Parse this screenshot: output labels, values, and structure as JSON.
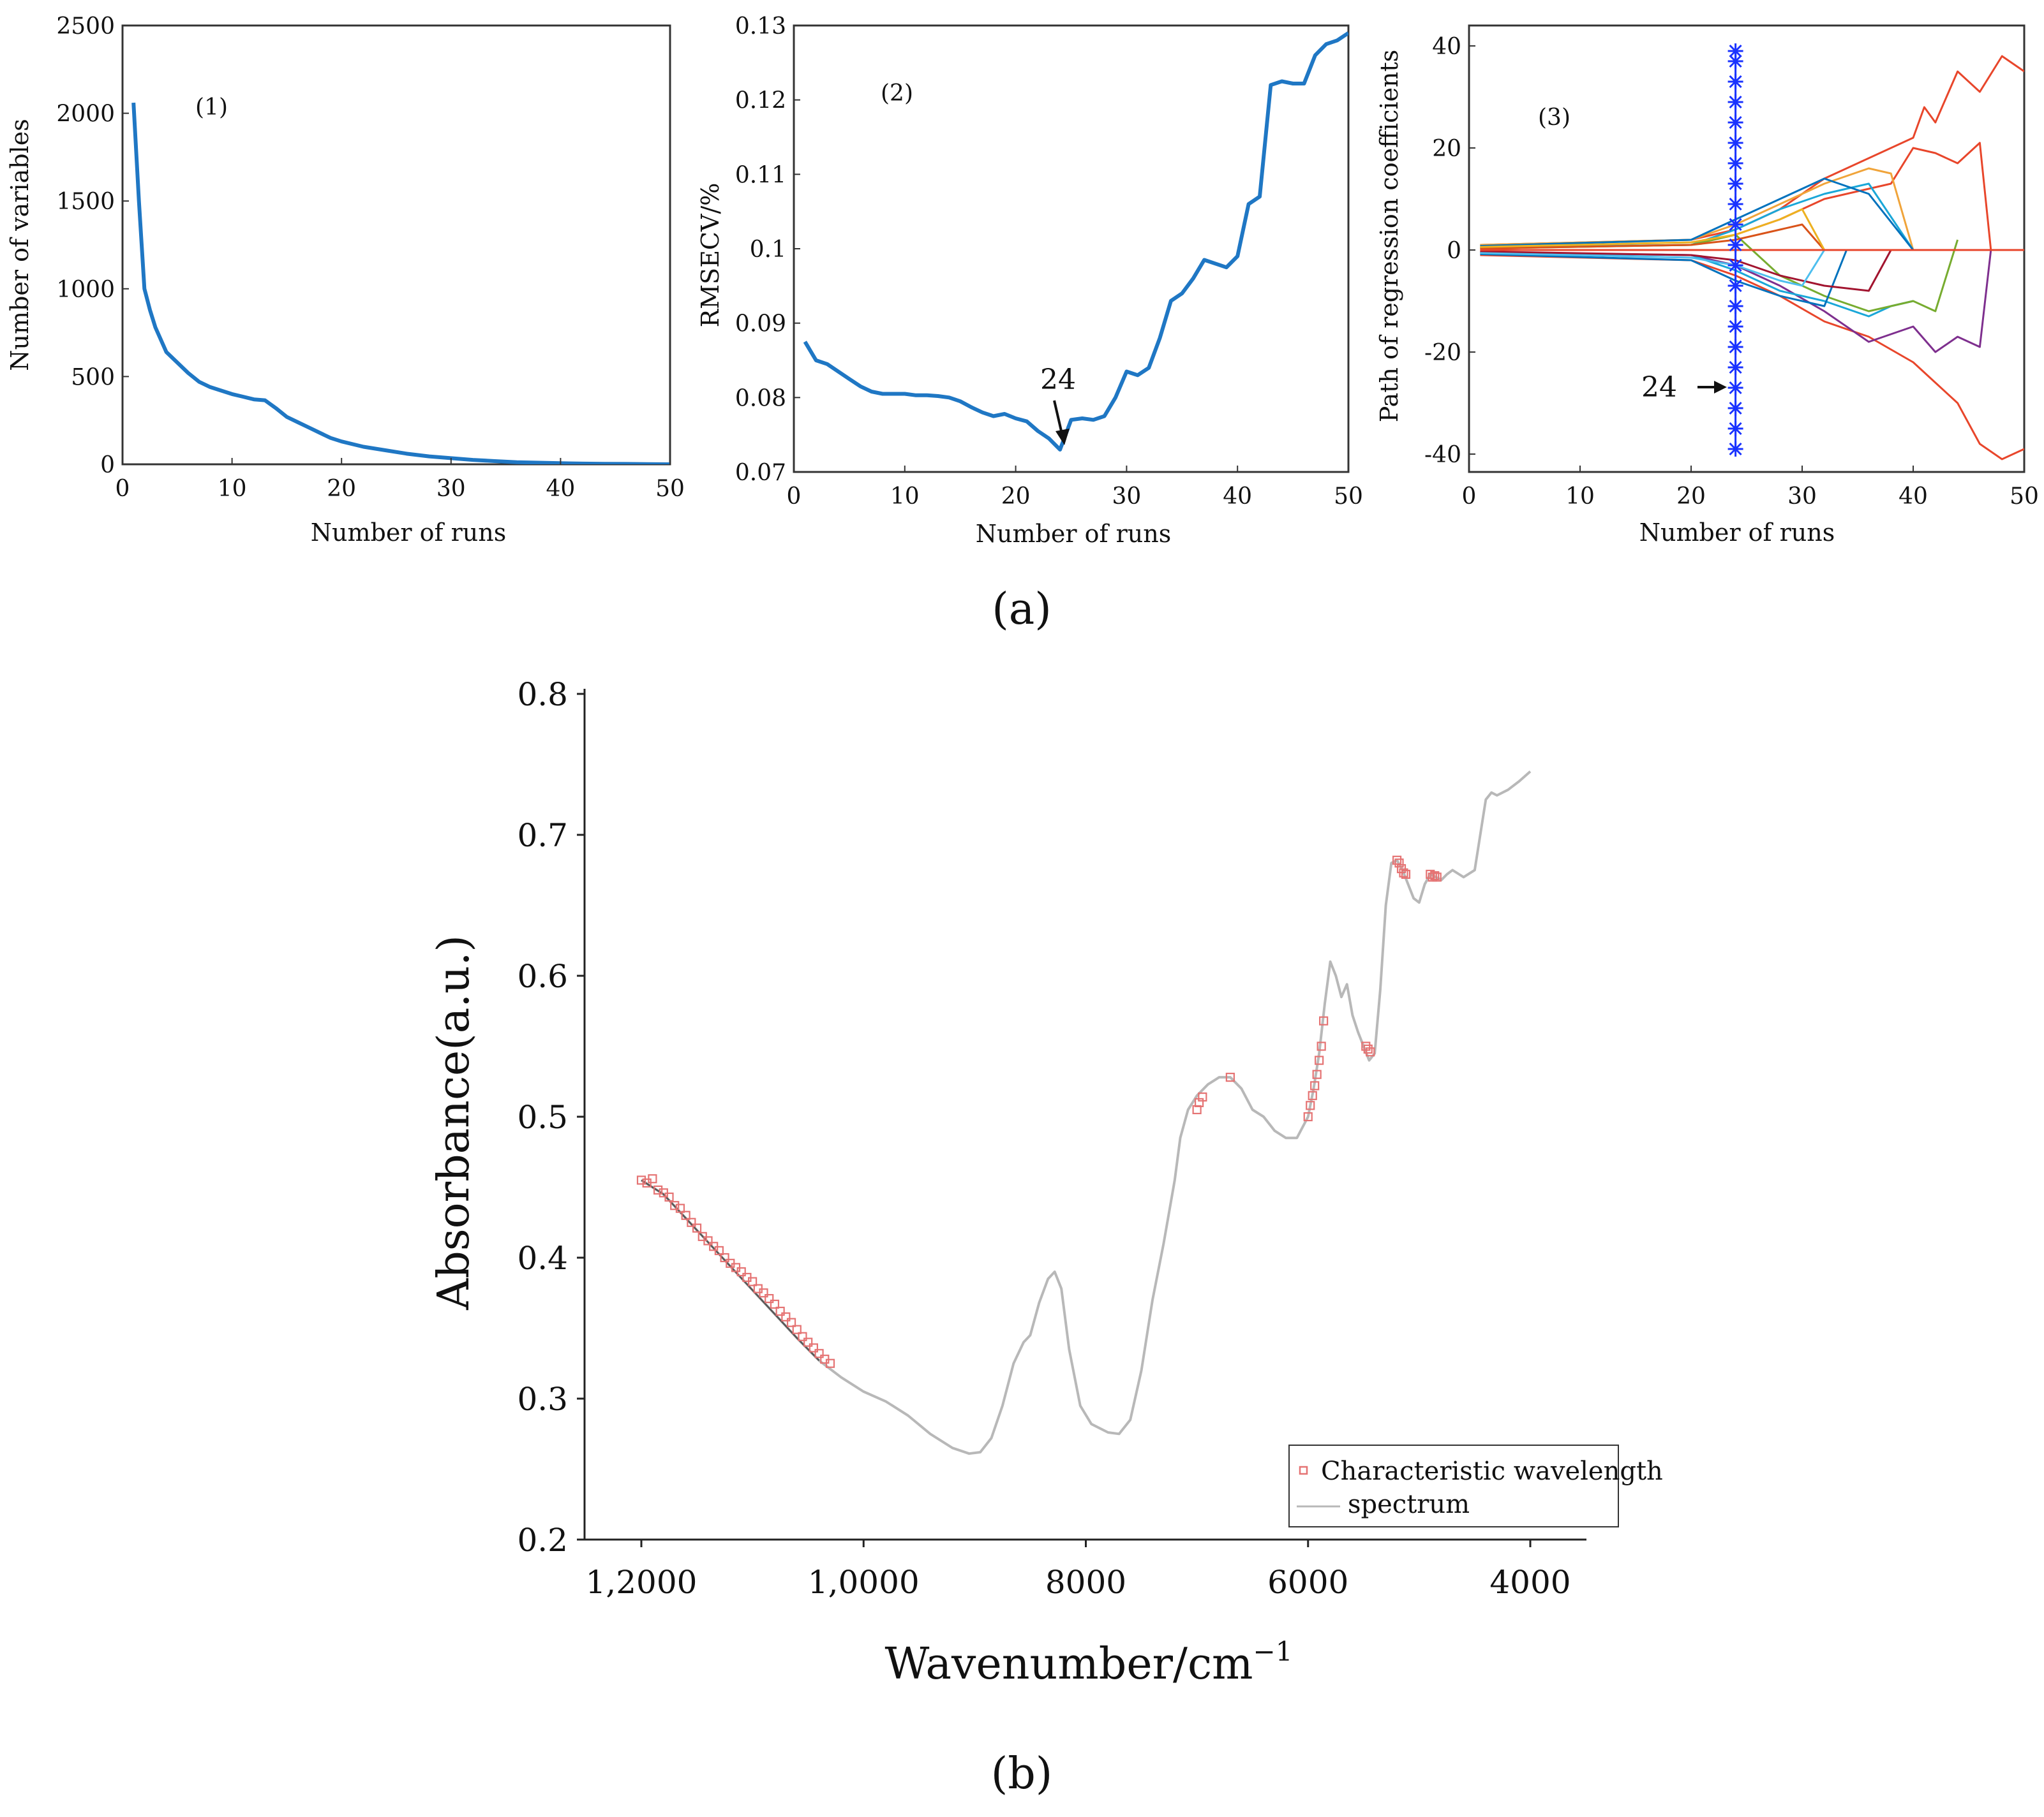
{
  "caption_a": "(a)",
  "caption_b": "(b)",
  "chart_data": [
    {
      "type": "line",
      "panel_label": "(1)",
      "xlabel": "Number of runs",
      "ylabel": "Number of variables",
      "xlim": [
        0,
        50
      ],
      "ylim": [
        0,
        2500
      ],
      "xticks": [
        "0",
        "10",
        "20",
        "30",
        "40",
        "50"
      ],
      "yticks": [
        "0",
        "500",
        "1000",
        "1500",
        "2000",
        "2500"
      ],
      "color": "#1f77c4",
      "series": [
        {
          "name": "Number of variables",
          "x": [
            1,
            1.5,
            2,
            2.5,
            3,
            4,
            5,
            6,
            7,
            8,
            9,
            10,
            11,
            12,
            13,
            14,
            15,
            16,
            17,
            18,
            19,
            20,
            22,
            24,
            26,
            28,
            30,
            32,
            34,
            36,
            38,
            40,
            42,
            44,
            46,
            48,
            50
          ],
          "y": [
            2060,
            1500,
            1000,
            880,
            780,
            640,
            580,
            520,
            470,
            440,
            420,
            400,
            385,
            370,
            365,
            320,
            270,
            240,
            210,
            180,
            150,
            130,
            100,
            80,
            60,
            45,
            35,
            25,
            18,
            12,
            9,
            6,
            4,
            3,
            2,
            1,
            0
          ]
        }
      ]
    },
    {
      "type": "line",
      "panel_label": "(2)",
      "xlabel": "Number of runs",
      "ylabel": "RMSECV/%",
      "xlim": [
        0,
        50
      ],
      "ylim": [
        0.07,
        0.13
      ],
      "xticks": [
        "0",
        "10",
        "20",
        "30",
        "40",
        "50"
      ],
      "yticks": [
        "0.07",
        "0.08",
        "0.09",
        "0.1",
        "0.11",
        "0.12",
        "0.13"
      ],
      "annotation": "24",
      "annotation_x": 24,
      "color": "#1f77c4",
      "series": [
        {
          "name": "RMSECV",
          "x": [
            1,
            2,
            3,
            4,
            5,
            6,
            7,
            8,
            9,
            10,
            11,
            12,
            13,
            14,
            15,
            16,
            17,
            18,
            19,
            20,
            21,
            22,
            23,
            24,
            25,
            26,
            27,
            28,
            29,
            30,
            31,
            32,
            33,
            34,
            35,
            36,
            37,
            38,
            39,
            40,
            41,
            42,
            43,
            44,
            45,
            46,
            47,
            48,
            49,
            50
          ],
          "y": [
            0.0875,
            0.085,
            0.0845,
            0.0835,
            0.0825,
            0.0815,
            0.0808,
            0.0805,
            0.0805,
            0.0805,
            0.0803,
            0.0803,
            0.0802,
            0.08,
            0.0795,
            0.0787,
            0.078,
            0.0775,
            0.0778,
            0.0772,
            0.0768,
            0.0755,
            0.0745,
            0.073,
            0.077,
            0.0772,
            0.077,
            0.0775,
            0.08,
            0.0835,
            0.083,
            0.084,
            0.088,
            0.093,
            0.094,
            0.096,
            0.0985,
            0.098,
            0.0975,
            0.099,
            0.106,
            0.107,
            0.122,
            0.1225,
            0.1222,
            0.1222,
            0.126,
            0.1275,
            0.128,
            0.129
          ]
        }
      ]
    },
    {
      "type": "line",
      "panel_label": "(3)",
      "xlabel": "Number of runs",
      "ylabel": "Path of regression coefficients",
      "xlim": [
        0,
        50
      ],
      "ylim": [
        -42,
        42
      ],
      "xticks": [
        "0",
        "10",
        "20",
        "30",
        "40",
        "50"
      ],
      "yticks": [
        "-40",
        "-20",
        "0",
        "20",
        "40"
      ],
      "annotation": "24",
      "marker_x": 24,
      "marker_y": [
        -39,
        -35,
        -31,
        -27,
        -23,
        -19,
        -15,
        -11,
        -7,
        -3,
        1,
        5,
        9,
        13,
        17,
        21,
        25,
        29,
        33,
        37,
        39
      ],
      "series": [
        {
          "name": "coef-1",
          "color": "#e8462b",
          "x": [
            1,
            20,
            24,
            28,
            32,
            36,
            40,
            41,
            42,
            44,
            46,
            48,
            50
          ],
          "y": [
            1,
            2,
            4,
            8,
            14,
            18,
            22,
            28,
            25,
            35,
            31,
            38,
            35
          ]
        },
        {
          "name": "coef-2",
          "color": "#e8462b",
          "x": [
            1,
            20,
            24,
            28,
            32,
            36,
            38,
            40,
            42,
            44,
            46,
            47
          ],
          "y": [
            0.5,
            1,
            3,
            6,
            10,
            12,
            13,
            20,
            19,
            17,
            21,
            0
          ]
        },
        {
          "name": "coef-3",
          "color": "#e8462b",
          "x": [
            1,
            20,
            24,
            28,
            32,
            36,
            40,
            42,
            44,
            46,
            48,
            50
          ],
          "y": [
            -1,
            -2,
            -5,
            -9,
            -14,
            -17,
            -22,
            -26,
            -30,
            -38,
            -41,
            -39
          ]
        },
        {
          "name": "coef-4",
          "color": "#f0a43a",
          "x": [
            1,
            20,
            24,
            28,
            32,
            36,
            38,
            40
          ],
          "y": [
            1,
            2,
            5,
            9,
            13,
            16,
            15,
            0
          ]
        },
        {
          "name": "coef-5",
          "color": "#7e2f8e",
          "x": [
            1,
            20,
            24,
            28,
            32,
            36,
            40,
            42,
            44,
            46,
            47
          ],
          "y": [
            -0.5,
            -1,
            -3,
            -7,
            -12,
            -18,
            -15,
            -20,
            -17,
            -19,
            0
          ]
        },
        {
          "name": "coef-6",
          "color": "#1aa7d8",
          "x": [
            1,
            20,
            24,
            28,
            32,
            36,
            40
          ],
          "y": [
            0.5,
            1,
            4,
            8,
            11,
            13,
            0
          ]
        },
        {
          "name": "coef-7",
          "color": "#1aa7d8",
          "x": [
            1,
            20,
            24,
            28,
            32,
            36,
            38,
            40
          ],
          "y": [
            -0.5,
            -1,
            -4,
            -8,
            -10,
            -13,
            -11,
            -10
          ]
        },
        {
          "name": "coef-8",
          "color": "#77ac30",
          "x": [
            1,
            20,
            24,
            28,
            32,
            36,
            40,
            42,
            44
          ],
          "y": [
            0.3,
            1,
            3,
            -5,
            -9,
            -12,
            -10,
            -12,
            2
          ]
        },
        {
          "name": "coef-9",
          "color": "#0072bd",
          "x": [
            1,
            20,
            24,
            28,
            32,
            36,
            40
          ],
          "y": [
            0.8,
            2,
            6,
            10,
            14,
            11,
            0
          ]
        },
        {
          "name": "coef-10",
          "color": "#0072bd",
          "x": [
            1,
            20,
            24,
            28,
            32,
            34
          ],
          "y": [
            -0.8,
            -2,
            -6,
            -9,
            -11,
            0
          ]
        },
        {
          "name": "coef-11",
          "color": "#d95319",
          "x": [
            1,
            20,
            24,
            28,
            30,
            32
          ],
          "y": [
            0.3,
            1,
            2,
            4,
            5,
            0
          ]
        },
        {
          "name": "coef-12",
          "color": "#a2142f",
          "x": [
            1,
            20,
            24,
            28,
            32,
            36,
            38
          ],
          "y": [
            -0.3,
            -1,
            -2,
            -5,
            -7,
            -8,
            0
          ]
        },
        {
          "name": "coef-13",
          "color": "#edb120",
          "x": [
            1,
            20,
            24,
            28,
            30,
            32
          ],
          "y": [
            0.6,
            1.5,
            3,
            6,
            8,
            0
          ]
        },
        {
          "name": "coef-14",
          "color": "#4dbeee",
          "x": [
            1,
            20,
            24,
            28,
            30,
            32
          ],
          "y": [
            -0.6,
            -1.5,
            -3,
            -6,
            -7,
            0
          ]
        },
        {
          "name": "zero-line",
          "color": "#e8462b",
          "x": [
            1,
            50
          ],
          "y": [
            0,
            0
          ]
        }
      ]
    },
    {
      "type": "scatter",
      "xlabel": "Wavenumber/cm",
      "xlabel_sup": "−1",
      "ylabel": "Absorbance(a.u.)",
      "xlim": [
        12400,
        3500
      ],
      "ylim": [
        0.2,
        0.8
      ],
      "xtick_values": [
        12000,
        10000,
        8000,
        6000,
        4000
      ],
      "xticks": [
        "1,2000",
        "1,0000",
        "8000",
        "6000",
        "4000"
      ],
      "yticks": [
        "0.2",
        "0.3",
        "0.4",
        "0.5",
        "0.6",
        "0.7",
        "0.8"
      ],
      "legend": [
        "Characteristic wavelength",
        "spectrum"
      ],
      "legend_position": "bottom-right",
      "series": [
        {
          "name": "spectrum",
          "type": "line",
          "color": "#b8b8b8",
          "x": [
            12000,
            11800,
            11600,
            11400,
            11200,
            11000,
            10800,
            10600,
            10400,
            10200,
            10000,
            9800,
            9600,
            9400,
            9200,
            9050,
            8950,
            8850,
            8750,
            8650,
            8560,
            8500,
            8420,
            8340,
            8280,
            8220,
            8150,
            8050,
            7950,
            7800,
            7700,
            7600,
            7500,
            7400,
            7300,
            7200,
            7150,
            7080,
            7000,
            6900,
            6800,
            6700,
            6600,
            6500,
            6400,
            6300,
            6200,
            6100,
            6000,
            5950,
            5900,
            5850,
            5800,
            5750,
            5700,
            5650,
            5600,
            5550,
            5500,
            5450,
            5400,
            5350,
            5300,
            5250,
            5200,
            5150,
            5100,
            5050,
            5000,
            4950,
            4900,
            4850,
            4800,
            4750,
            4700,
            4600,
            4500,
            4450,
            4400,
            4350,
            4300,
            4200,
            4100,
            4000
          ],
          "y": [
            0.455,
            0.445,
            0.428,
            0.411,
            0.394,
            0.377,
            0.36,
            0.343,
            0.327,
            0.315,
            0.305,
            0.298,
            0.288,
            0.275,
            0.265,
            0.261,
            0.262,
            0.272,
            0.295,
            0.325,
            0.34,
            0.345,
            0.368,
            0.385,
            0.39,
            0.378,
            0.335,
            0.295,
            0.282,
            0.276,
            0.275,
            0.285,
            0.32,
            0.37,
            0.41,
            0.455,
            0.485,
            0.505,
            0.515,
            0.523,
            0.528,
            0.528,
            0.52,
            0.505,
            0.5,
            0.49,
            0.485,
            0.485,
            0.5,
            0.52,
            0.545,
            0.58,
            0.61,
            0.6,
            0.585,
            0.594,
            0.572,
            0.56,
            0.55,
            0.54,
            0.545,
            0.59,
            0.65,
            0.68,
            0.682,
            0.675,
            0.665,
            0.655,
            0.652,
            0.665,
            0.672,
            0.67,
            0.668,
            0.672,
            0.675,
            0.67,
            0.675,
            0.7,
            0.725,
            0.73,
            0.728,
            0.732,
            0.738,
            0.745
          ]
        },
        {
          "name": "Characteristic wavelength",
          "type": "scatter",
          "color": "#e57373",
          "x": [
            12000,
            11950,
            11900,
            11850,
            11800,
            11750,
            11700,
            11650,
            11600,
            11550,
            11500,
            11450,
            11400,
            11350,
            11300,
            11250,
            11200,
            11150,
            11100,
            11050,
            11000,
            10950,
            10900,
            10850,
            10800,
            10750,
            10700,
            10650,
            10600,
            10550,
            10500,
            10450,
            10400,
            10350,
            10300,
            7000,
            6980,
            6950,
            6700,
            6000,
            5980,
            5960,
            5940,
            5920,
            5900,
            5880,
            5860,
            5480,
            5460,
            5440,
            5200,
            5180,
            5160,
            5140,
            5120,
            4900,
            4880,
            4860,
            4840
          ],
          "y": [
            0.455,
            0.453,
            0.456,
            0.448,
            0.446,
            0.443,
            0.437,
            0.435,
            0.43,
            0.425,
            0.421,
            0.415,
            0.412,
            0.408,
            0.405,
            0.4,
            0.396,
            0.393,
            0.39,
            0.386,
            0.383,
            0.378,
            0.375,
            0.371,
            0.367,
            0.362,
            0.358,
            0.354,
            0.349,
            0.344,
            0.34,
            0.336,
            0.332,
            0.328,
            0.325,
            0.505,
            0.51,
            0.514,
            0.528,
            0.5,
            0.508,
            0.515,
            0.522,
            0.53,
            0.54,
            0.55,
            0.568,
            0.55,
            0.548,
            0.546,
            0.682,
            0.68,
            0.676,
            0.673,
            0.672,
            0.672,
            0.67,
            0.671,
            0.67
          ]
        }
      ]
    }
  ]
}
